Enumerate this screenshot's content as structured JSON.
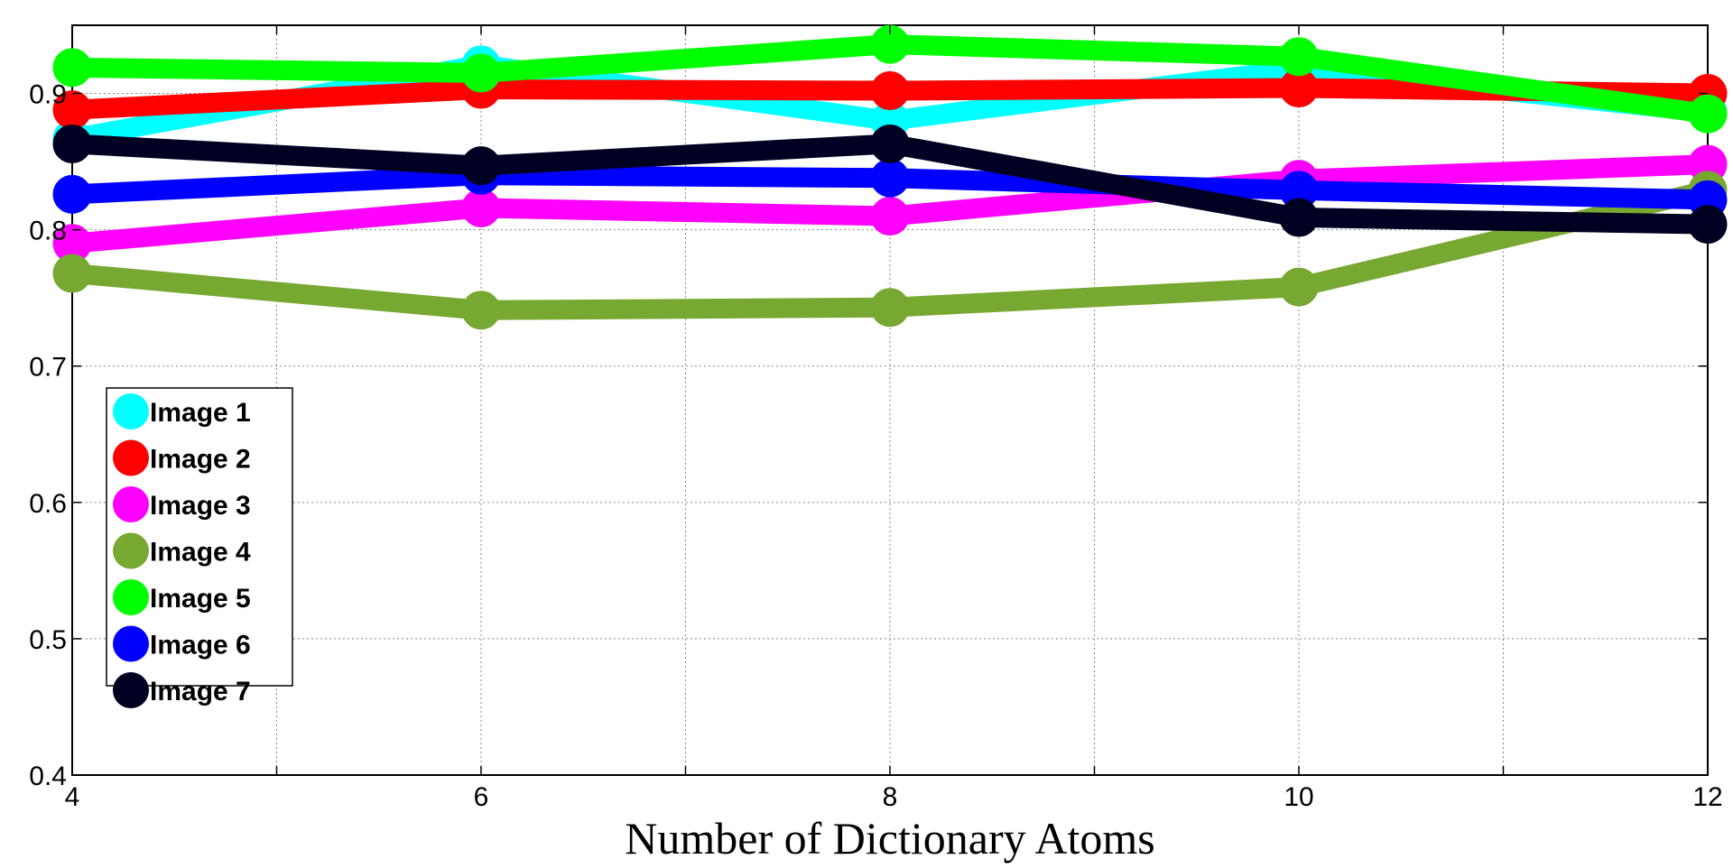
{
  "chart_data": {
    "type": "line",
    "title": "",
    "xlabel": "Number of Dictionary Atoms",
    "ylabel": "",
    "x": [
      4,
      6,
      8,
      10,
      12
    ],
    "xlim": [
      4,
      12
    ],
    "ylim": [
      0.4,
      0.95
    ],
    "xticks": [
      4,
      6,
      8,
      10,
      12
    ],
    "xtick_labels": [
      "4",
      "6",
      "8",
      "10",
      "12"
    ],
    "yticks": [
      0.4,
      0.5,
      0.6,
      0.7,
      0.8,
      0.9
    ],
    "ytick_labels": [
      "0.4",
      "0.5",
      "0.6",
      "0.7",
      "0.8",
      "0.9"
    ],
    "grid": true,
    "legend_position": "lower-left",
    "series": [
      {
        "name": "Image 1",
        "color": "#00ffff",
        "values": [
          0.867,
          0.921,
          0.88,
          0.918,
          0.886
        ]
      },
      {
        "name": "Image 2",
        "color": "#ff0000",
        "values": [
          0.888,
          0.903,
          0.902,
          0.904,
          0.9
        ]
      },
      {
        "name": "Image 3",
        "color": "#ff00ff",
        "values": [
          0.79,
          0.816,
          0.81,
          0.837,
          0.848
        ]
      },
      {
        "name": "Image 4",
        "color": "#77a832",
        "values": [
          0.768,
          0.741,
          0.743,
          0.758,
          0.829
        ]
      },
      {
        "name": "Image 5",
        "color": "#00ff00",
        "values": [
          0.919,
          0.915,
          0.936,
          0.927,
          0.885
        ]
      },
      {
        "name": "Image 6",
        "color": "#0000ff",
        "values": [
          0.826,
          0.84,
          0.838,
          0.829,
          0.822
        ]
      },
      {
        "name": "Image 7",
        "color": "#000022",
        "values": [
          0.863,
          0.847,
          0.863,
          0.809,
          0.804
        ]
      }
    ]
  }
}
